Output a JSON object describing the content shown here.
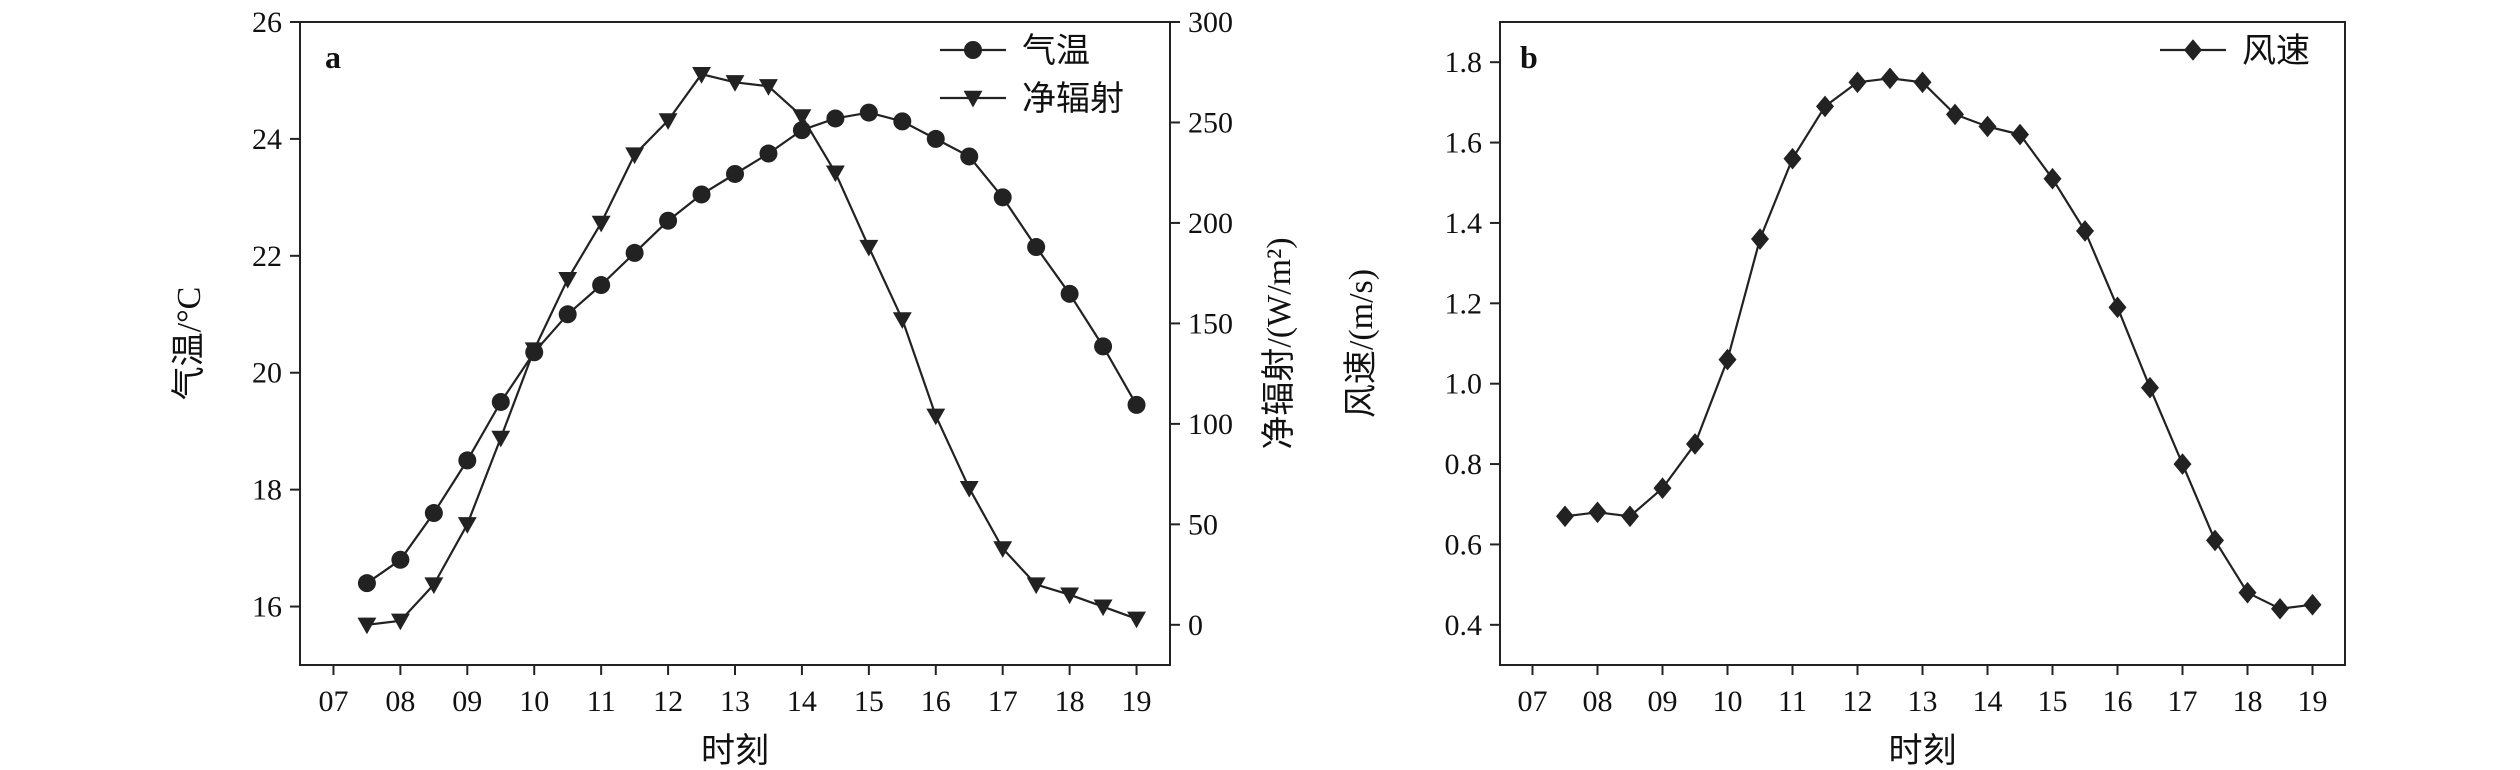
{
  "chart_data": [
    {
      "type": "line",
      "panel_label": "a",
      "xlabel": "时刻",
      "ylabel": "气温/°C",
      "y2label": "净辐射/(W/m²)",
      "xlim": [
        6.5,
        19.5
      ],
      "ylim": [
        15,
        26
      ],
      "y2lim": [
        -20,
        300
      ],
      "x_ticks": [
        7,
        8,
        9,
        10,
        11,
        12,
        13,
        14,
        15,
        16,
        17,
        18,
        19
      ],
      "x_tick_labels": [
        "07",
        "08",
        "09",
        "10",
        "11",
        "12",
        "13",
        "14",
        "15",
        "16",
        "17",
        "18",
        "19"
      ],
      "y_ticks": [
        16,
        18,
        20,
        22,
        24,
        26
      ],
      "y2_ticks": [
        0,
        50,
        100,
        150,
        200,
        250,
        300
      ],
      "legend_position": "top-right",
      "x": [
        7.5,
        8,
        8.5,
        9,
        9.5,
        10,
        10.5,
        11,
        11.5,
        12,
        12.5,
        13,
        13.5,
        14,
        14.5,
        15,
        15.5,
        16,
        16.5,
        17,
        17.5,
        18,
        18.5,
        19
      ],
      "series": [
        {
          "name": "气温",
          "axis": "left",
          "marker": "circle",
          "values": [
            16.4,
            16.8,
            17.6,
            18.5,
            19.5,
            20.35,
            21.0,
            21.5,
            22.05,
            22.6,
            23.05,
            23.4,
            23.75,
            24.15,
            24.35,
            24.45,
            24.3,
            24.0,
            23.7,
            23.0,
            22.15,
            21.35,
            20.45,
            19.45
          ]
        },
        {
          "name": "净辐射",
          "axis": "right",
          "marker": "triangle-down",
          "values": [
            0,
            2,
            20,
            50,
            93,
            137,
            172,
            200,
            234,
            251,
            274,
            270,
            268,
            253,
            225,
            188,
            152,
            104,
            68,
            38,
            20,
            15,
            9,
            3
          ]
        }
      ]
    },
    {
      "type": "line",
      "panel_label": "b",
      "xlabel": "时刻",
      "ylabel": "风速/(m/s)",
      "xlim": [
        6.5,
        19.5
      ],
      "ylim": [
        0.3,
        1.9
      ],
      "x_ticks": [
        7,
        8,
        9,
        10,
        11,
        12,
        13,
        14,
        15,
        16,
        17,
        18,
        19
      ],
      "x_tick_labels": [
        "07",
        "08",
        "09",
        "10",
        "11",
        "12",
        "13",
        "14",
        "15",
        "16",
        "17",
        "18",
        "19"
      ],
      "y_ticks": [
        0.4,
        0.6,
        0.8,
        1.0,
        1.2,
        1.4,
        1.6,
        1.8
      ],
      "y_tick_labels": [
        "0.4",
        "0.6",
        "0.8",
        "1.0",
        "1.2",
        "1.4",
        "1.6",
        "1.8"
      ],
      "legend_position": "top-right",
      "x": [
        7.5,
        8,
        8.5,
        9,
        9.5,
        10,
        10.5,
        11,
        11.5,
        12,
        12.5,
        13,
        13.5,
        14,
        14.5,
        15,
        15.5,
        16,
        16.5,
        17,
        17.5,
        18,
        18.5,
        19
      ],
      "series": [
        {
          "name": "风速",
          "axis": "left",
          "marker": "diamond",
          "values": [
            0.67,
            0.68,
            0.67,
            0.74,
            0.85,
            1.06,
            1.36,
            1.56,
            1.69,
            1.75,
            1.76,
            1.75,
            1.67,
            1.64,
            1.62,
            1.51,
            1.38,
            1.19,
            0.99,
            0.8,
            0.61,
            0.48,
            0.44,
            0.45
          ]
        }
      ]
    }
  ]
}
